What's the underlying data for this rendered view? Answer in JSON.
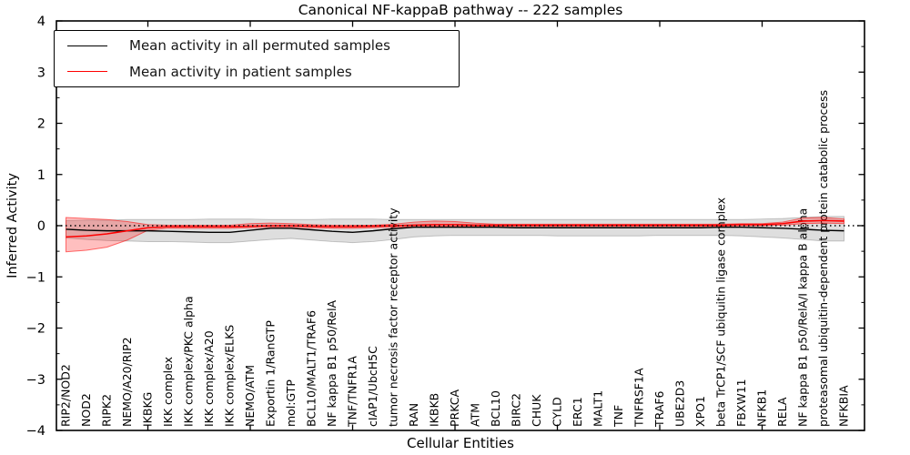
{
  "figure": {
    "title": "Canonical NF-kappaB pathway -- 222 samples",
    "xlabel": "Cellular Entities",
    "ylabel": "Inferred Activity"
  },
  "legend": {
    "entries": [
      {
        "label": "Mean activity in all permuted samples",
        "color": "#000000"
      },
      {
        "label": "Mean activity in patient samples",
        "color": "#ff0000"
      }
    ]
  },
  "chart_data": {
    "type": "line",
    "title": "Canonical NF-kappaB pathway -- 222 samples",
    "xlabel": "Cellular Entities",
    "ylabel": "Inferred Activity",
    "ylim": [
      -4,
      4
    ],
    "yticks": [
      4,
      3,
      2,
      1,
      0,
      -1,
      -2,
      -3,
      -4
    ],
    "y_minor_step": 0.5,
    "x_major_tick_indices": [
      4,
      9,
      14,
      19,
      24,
      29,
      34
    ],
    "grid": false,
    "legend_position": "upper left",
    "zero_line": {
      "y": 0,
      "style": "dotted",
      "color": "#000000"
    },
    "categories": [
      "RIP2/NOD2",
      "NOD2",
      "RIPK2",
      "NEMO/A20/RIP2",
      "IKBKG",
      "IKK complex",
      "IKK complex/PKC alpha",
      "IKK complex/A20",
      "IKK complex/ELKS",
      "NEMO/ATM",
      "Exportin 1/RanGTP",
      "mol:GTP",
      "BCL10/MALT1/TRAF6",
      "NF kappa B1 p50/RelA",
      "TNF/TNFR1A",
      "cIAP1/UbcH5C",
      "tumor necrosis factor receptor activity",
      "RAN",
      "IKBKB",
      "PRKCA",
      "ATM",
      "BCL10",
      "BIRC2",
      "CHUK",
      "CYLD",
      "ERC1",
      "MALT1",
      "TNF",
      "TNFRSF1A",
      "TRAF6",
      "UBE2D3",
      "XPO1",
      "beta TrCP1/SCF ubiquitin ligase complex",
      "FBXW11",
      "NFKB1",
      "RELA",
      "NF kappa B1 p50/RelA/I kappa B alpha",
      "proteasomal ubiquitin-dependent protein catabolic process",
      "NFKBIA"
    ],
    "series": [
      {
        "name": "Mean activity in all permuted samples",
        "color": "#000000",
        "line_width": 1.4,
        "band_fill": "rgba(0,0,0,0.13)",
        "band_edge": "rgba(0,0,0,0.20)",
        "values": [
          -0.07,
          -0.09,
          -0.1,
          -0.1,
          -0.1,
          -0.11,
          -0.12,
          -0.13,
          -0.13,
          -0.09,
          -0.05,
          -0.05,
          -0.08,
          -0.11,
          -0.13,
          -0.1,
          -0.06,
          -0.03,
          -0.03,
          -0.03,
          -0.03,
          -0.03,
          -0.04,
          -0.04,
          -0.04,
          -0.04,
          -0.04,
          -0.04,
          -0.04,
          -0.04,
          -0.04,
          -0.04,
          -0.03,
          -0.03,
          -0.04,
          -0.05,
          -0.07,
          -0.09,
          -0.1
        ],
        "band_upper": [
          0.1,
          0.11,
          0.11,
          0.12,
          0.12,
          0.12,
          0.12,
          0.13,
          0.13,
          0.13,
          0.12,
          0.12,
          0.12,
          0.13,
          0.13,
          0.13,
          0.12,
          0.12,
          0.12,
          0.12,
          0.12,
          0.12,
          0.12,
          0.12,
          0.12,
          0.12,
          0.12,
          0.12,
          0.12,
          0.12,
          0.12,
          0.12,
          0.12,
          0.12,
          0.13,
          0.14,
          0.16,
          0.18,
          0.18
        ],
        "band_lower": [
          -0.24,
          -0.27,
          -0.29,
          -0.3,
          -0.31,
          -0.31,
          -0.32,
          -0.33,
          -0.33,
          -0.3,
          -0.27,
          -0.25,
          -0.28,
          -0.31,
          -0.33,
          -0.31,
          -0.27,
          -0.22,
          -0.2,
          -0.19,
          -0.19,
          -0.19,
          -0.19,
          -0.19,
          -0.2,
          -0.2,
          -0.2,
          -0.2,
          -0.2,
          -0.19,
          -0.19,
          -0.19,
          -0.19,
          -0.2,
          -0.22,
          -0.24,
          -0.27,
          -0.3,
          -0.3
        ]
      },
      {
        "name": "Mean activity in patient samples",
        "color": "#ff0000",
        "line_width": 1.6,
        "band_fill": "rgba(255,0,0,0.25)",
        "band_edge": "rgba(255,0,0,0.55)",
        "values": [
          -0.22,
          -0.2,
          -0.16,
          -0.1,
          -0.04,
          -0.02,
          -0.02,
          -0.02,
          -0.02,
          -0.01,
          0.0,
          0.0,
          -0.01,
          -0.02,
          -0.02,
          -0.01,
          0.0,
          0.01,
          0.02,
          0.02,
          0.01,
          0.01,
          0.01,
          0.01,
          0.01,
          0.01,
          0.01,
          0.01,
          0.01,
          0.01,
          0.01,
          0.01,
          0.01,
          0.02,
          0.02,
          0.04,
          0.09,
          0.1,
          0.09
        ],
        "band_upper": [
          0.16,
          0.14,
          0.12,
          0.08,
          0.02,
          0.01,
          0.01,
          0.01,
          0.01,
          0.04,
          0.05,
          0.04,
          0.02,
          0.01,
          0.01,
          0.01,
          0.03,
          0.07,
          0.09,
          0.08,
          0.05,
          0.03,
          0.03,
          0.03,
          0.03,
          0.03,
          0.03,
          0.03,
          0.03,
          0.03,
          0.03,
          0.03,
          0.03,
          0.04,
          0.04,
          0.07,
          0.15,
          0.16,
          0.13
        ],
        "band_lower": [
          -0.51,
          -0.48,
          -0.42,
          -0.28,
          -0.09,
          -0.05,
          -0.05,
          -0.05,
          -0.05,
          -0.04,
          -0.03,
          -0.03,
          -0.04,
          -0.05,
          -0.05,
          -0.04,
          -0.03,
          -0.02,
          -0.01,
          -0.01,
          -0.01,
          -0.01,
          -0.01,
          -0.01,
          -0.01,
          -0.01,
          -0.01,
          -0.01,
          -0.01,
          -0.01,
          -0.01,
          -0.01,
          -0.01,
          0.0,
          0.0,
          0.01,
          0.04,
          0.05,
          0.04
        ]
      }
    ]
  }
}
